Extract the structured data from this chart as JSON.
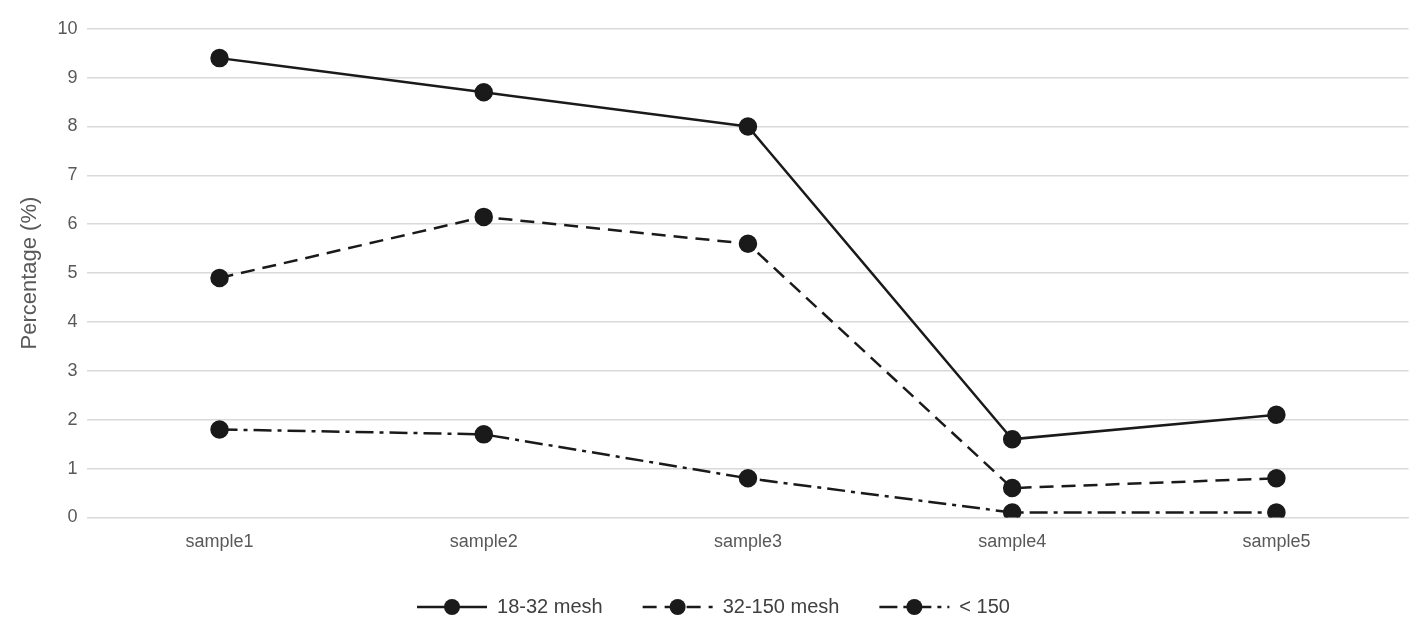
{
  "chart_data": {
    "type": "line",
    "ylabel": "Percentage (%)",
    "categories": [
      "sample1",
      "sample2",
      "sample3",
      "sample4",
      "sample5"
    ],
    "series": [
      {
        "name": "18-32 mesh",
        "color": "#1a1a1a",
        "line_style": "solid",
        "values": [
          9.4,
          8.7,
          8.0,
          1.6,
          2.1
        ]
      },
      {
        "name": "32-150 mesh",
        "color": "#1a1a1a",
        "line_style": "dashed",
        "values": [
          4.9,
          6.15,
          5.6,
          0.6,
          0.8
        ]
      },
      {
        "name": "< 150",
        "color": "#1a1a1a",
        "line_style": "dashdot",
        "values": [
          1.8,
          1.7,
          0.8,
          0.1,
          0.1
        ]
      }
    ],
    "ylim": [
      0,
      10
    ],
    "yticks": [
      0,
      1,
      2,
      3,
      4,
      5,
      6,
      7,
      8,
      9,
      10
    ],
    "grid": "y",
    "legend": "bottom",
    "marker": "circle"
  }
}
